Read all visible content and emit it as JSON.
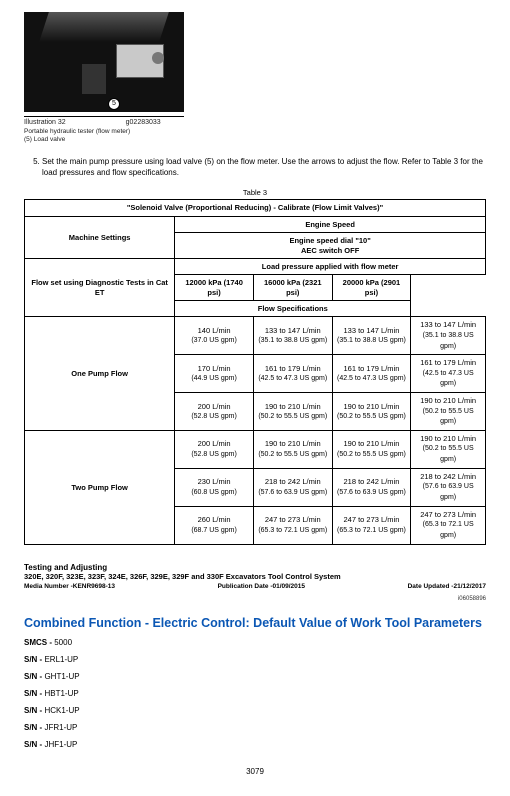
{
  "photo": {
    "callout": "5"
  },
  "illustration": {
    "label": "Illustration 32",
    "code": "g02283033",
    "line1": "Portable hydraulic tester (flow meter)",
    "line2": "(5) Load valve"
  },
  "instruction": {
    "num": "5.",
    "text": "Set the main pump pressure using load valve (5) on the flow meter. Use the arrows to adjust the flow. Refer to Table 3 for the load pressures and flow specifications."
  },
  "tableLabel": "Table 3",
  "table": {
    "title": "\"Solenoid Valve (Proportional Reducing) - Calibrate (Flow Limit Valves)\"",
    "machineSettings": "Machine Settings",
    "engineSpeed": "Engine Speed",
    "engineDial": "Engine speed dial \"10\"",
    "aec": "AEC switch OFF",
    "flowSetHdr": "Flow set using Diagnostic Tests in Cat ET",
    "loadPressureHdr": "Load pressure applied with flow meter",
    "cols": {
      "c1": "12000 kPa (1740 psi)",
      "c2": "16000 kPa (2321 psi)",
      "c3": "20000 kPa (2901 psi)"
    },
    "flowSpecHdr": "Flow Specifications",
    "onePump": "One Pump Flow",
    "twoPump": "Two Pump Flow",
    "rows": [
      {
        "set": "140 L/min",
        "setSub": "(37.0 US gpm)",
        "a": "133 to 147 L/min",
        "aSub": "(35.1 to 38.8 US gpm)",
        "b": "133 to 147 L/min",
        "bSub": "(35.1 to 38.8 US gpm)",
        "c": "133 to 147 L/min",
        "cSub": "(35.1 to 38.8 US gpm)"
      },
      {
        "set": "170 L/min",
        "setSub": "(44.9 US gpm)",
        "a": "161 to 179 L/min",
        "aSub": "(42.5 to 47.3 US gpm)",
        "b": "161 to 179 L/min",
        "bSub": "(42.5 to 47.3 US gpm)",
        "c": "161 to 179 L/min",
        "cSub": "(42.5 to 47.3 US gpm)"
      },
      {
        "set": "200 L/min",
        "setSub": "(52.8 US gpm)",
        "a": "190 to 210 L/min",
        "aSub": "(50.2 to 55.5 US gpm)",
        "b": "190 to 210 L/min",
        "bSub": "(50.2 to 55.5 US gpm)",
        "c": "190 to 210 L/min",
        "cSub": "(50.2 to 55.5 US gpm)"
      },
      {
        "set": "200 L/min",
        "setSub": "(52.8 US gpm)",
        "a": "190 to 210 L/min",
        "aSub": "(50.2 to 55.5 US gpm)",
        "b": "190 to 210 L/min",
        "bSub": "(50.2 to 55.5 US gpm)",
        "c": "190 to 210 L/min",
        "cSub": "(50.2 to 55.5 US gpm)"
      },
      {
        "set": "230 L/min",
        "setSub": "(60.8 US gpm)",
        "a": "218 to 242 L/min",
        "aSub": "(57.6 to 63.9 US gpm)",
        "b": "218 to 242 L/min",
        "bSub": "(57.6 to 63.9 US gpm)",
        "c": "218 to 242 L/min",
        "cSub": "(57.6 to 63.9 US gpm)"
      },
      {
        "set": "260 L/min",
        "setSub": "(68.7 US gpm)",
        "a": "247 to 273 L/min",
        "aSub": "(65.3 to 72.1 US gpm)",
        "b": "247 to 273 L/min",
        "bSub": "(65.3 to 72.1 US gpm)",
        "c": "247 to 273 L/min",
        "cSub": "(65.3 to 72.1 US gpm)"
      }
    ]
  },
  "section": {
    "t1": "Testing and Adjusting",
    "t2": "320E, 320F, 323E, 323F, 324E, 326F, 329E, 329F and 330F Excavators Tool Control System",
    "media": "Media Number -KENR9698-13",
    "pub": "Publication Date -01/09/2015",
    "upd": "Date Updated -21/12/2017"
  },
  "docId": "i06058896",
  "blueHeader": "Combined Function - Electric Control: Default Value of Work Tool Parameters",
  "smcs": {
    "label": "SMCS - ",
    "val": "5000"
  },
  "sns": [
    {
      "label": "S/N - ",
      "val": "ERL1-UP"
    },
    {
      "label": "S/N - ",
      "val": "GHT1-UP"
    },
    {
      "label": "S/N - ",
      "val": "HBT1-UP"
    },
    {
      "label": "S/N - ",
      "val": "HCK1-UP"
    },
    {
      "label": "S/N - ",
      "val": "JFR1-UP"
    },
    {
      "label": "S/N - ",
      "val": "JHF1-UP"
    }
  ],
  "pageNum": "3079"
}
